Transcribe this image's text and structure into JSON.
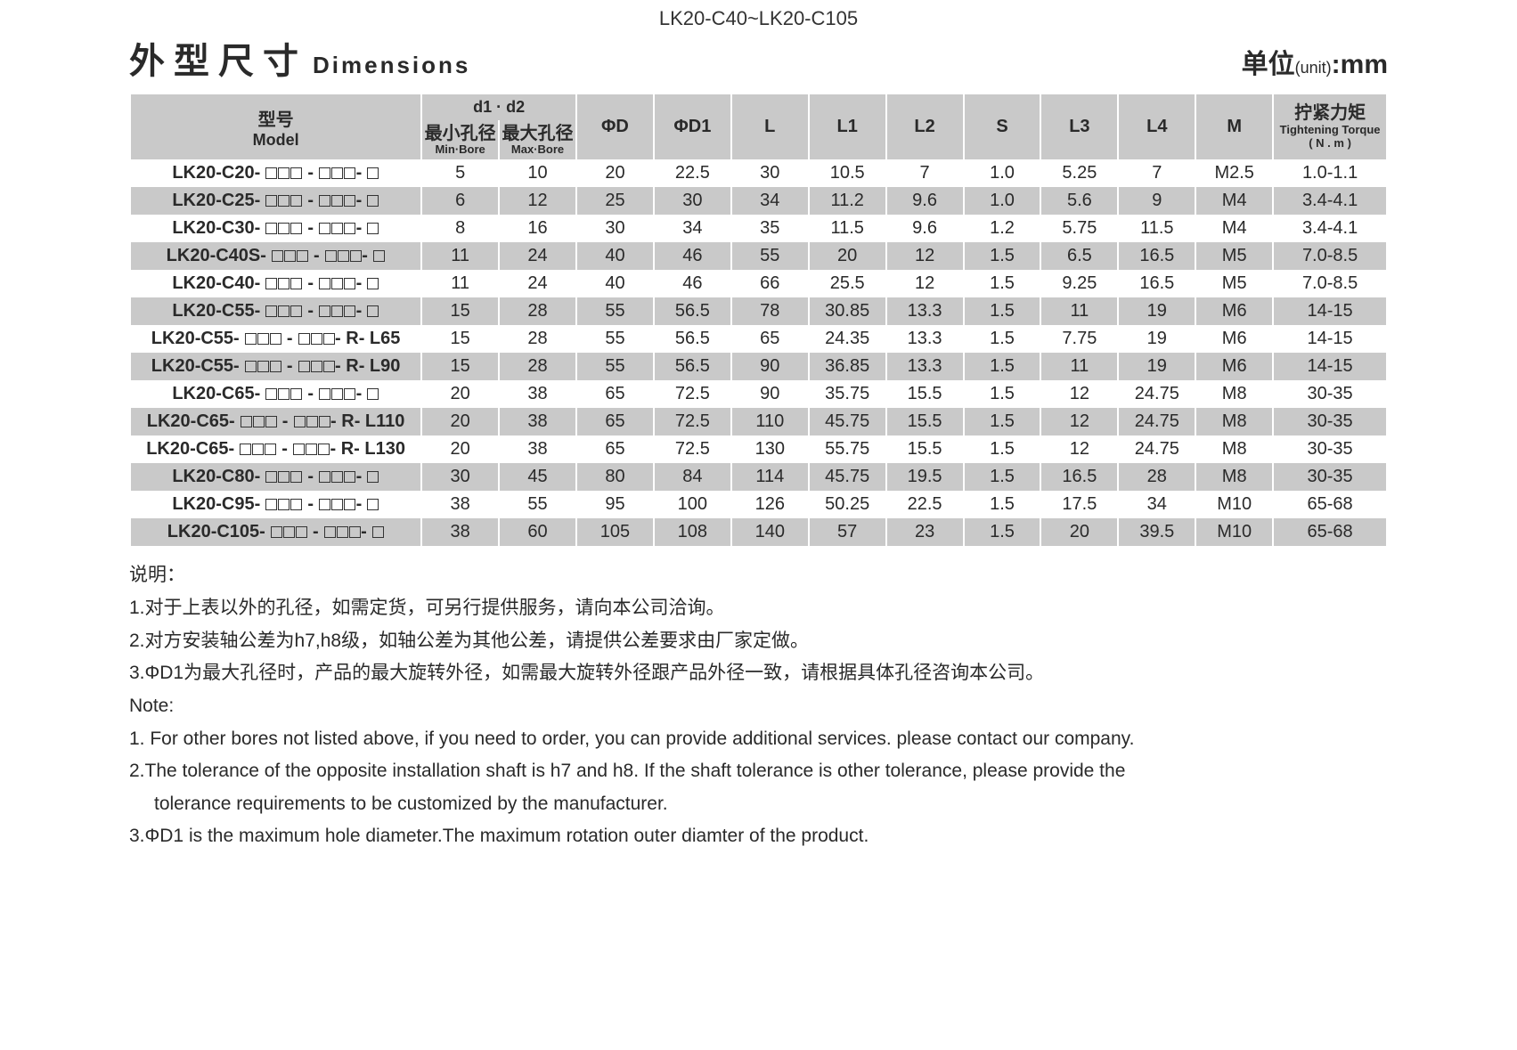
{
  "top_code": "LK20-C40~LK20-C105",
  "title": {
    "cn": "外型尺寸",
    "en": "Dimensions"
  },
  "unit": {
    "cn": "单位",
    "paren": "(unit)",
    "val": "mm"
  },
  "header": {
    "model_cn": "型号",
    "model_en": "Model",
    "d1d2": "d1 · d2",
    "min_bore_cn": "最小孔径",
    "min_bore_en": "Min·Bore",
    "max_bore_cn": "最大孔径",
    "max_bore_en": "Max·Bore",
    "phiD": "ΦD",
    "phiD1": "ΦD1",
    "L": "L",
    "L1": "L1",
    "L2": "L2",
    "S": "S",
    "L3": "L3",
    "L4": "L4",
    "M": "M",
    "torque_cn": "拧紧力矩",
    "torque_en": "Tightening Torque",
    "torque_unit": "( N . m )"
  },
  "rows": [
    {
      "model_prefix": "LK20-C20-",
      "model_suffix": "",
      "min": "5",
      "max": "10",
      "D": "20",
      "D1": "22.5",
      "L": "30",
      "L1": "10.5",
      "L2": "7",
      "S": "1.0",
      "L3": "5.25",
      "L4": "7",
      "M": "M2.5",
      "T": "1.0-1.1"
    },
    {
      "model_prefix": "LK20-C25-",
      "model_suffix": "",
      "min": "6",
      "max": "12",
      "D": "25",
      "D1": "30",
      "L": "34",
      "L1": "11.2",
      "L2": "9.6",
      "S": "1.0",
      "L3": "5.6",
      "L4": "9",
      "M": "M4",
      "T": "3.4-4.1"
    },
    {
      "model_prefix": "LK20-C30-",
      "model_suffix": "",
      "min": "8",
      "max": "16",
      "D": "30",
      "D1": "34",
      "L": "35",
      "L1": "11.5",
      "L2": "9.6",
      "S": "1.2",
      "L3": "5.75",
      "L4": "11.5",
      "M": "M4",
      "T": "3.4-4.1"
    },
    {
      "model_prefix": "LK20-C40S-",
      "model_suffix": "",
      "min": "11",
      "max": "24",
      "D": "40",
      "D1": "46",
      "L": "55",
      "L1": "20",
      "L2": "12",
      "S": "1.5",
      "L3": "6.5",
      "L4": "16.5",
      "M": "M5",
      "T": "7.0-8.5"
    },
    {
      "model_prefix": "LK20-C40-",
      "model_suffix": "",
      "min": "11",
      "max": "24",
      "D": "40",
      "D1": "46",
      "L": "66",
      "L1": "25.5",
      "L2": "12",
      "S": "1.5",
      "L3": "9.25",
      "L4": "16.5",
      "M": "M5",
      "T": "7.0-8.5"
    },
    {
      "model_prefix": "LK20-C55-",
      "model_suffix": "",
      "min": "15",
      "max": "28",
      "D": "55",
      "D1": "56.5",
      "L": "78",
      "L1": "30.85",
      "L2": "13.3",
      "S": "1.5",
      "L3": "11",
      "L4": "19",
      "M": "M6",
      "T": "14-15"
    },
    {
      "model_prefix": "LK20-C55-",
      "model_suffix": "- R- L65",
      "min": "15",
      "max": "28",
      "D": "55",
      "D1": "56.5",
      "L": "65",
      "L1": "24.35",
      "L2": "13.3",
      "S": "1.5",
      "L3": "7.75",
      "L4": "19",
      "M": "M6",
      "T": "14-15"
    },
    {
      "model_prefix": "LK20-C55-",
      "model_suffix": "- R- L90",
      "min": "15",
      "max": "28",
      "D": "55",
      "D1": "56.5",
      "L": "90",
      "L1": "36.85",
      "L2": "13.3",
      "S": "1.5",
      "L3": "11",
      "L4": "19",
      "M": "M6",
      "T": "14-15"
    },
    {
      "model_prefix": "LK20-C65-",
      "model_suffix": "",
      "min": "20",
      "max": "38",
      "D": "65",
      "D1": "72.5",
      "L": "90",
      "L1": "35.75",
      "L2": "15.5",
      "S": "1.5",
      "L3": "12",
      "L4": "24.75",
      "M": "M8",
      "T": "30-35"
    },
    {
      "model_prefix": "LK20-C65-",
      "model_suffix": "- R- L110",
      "min": "20",
      "max": "38",
      "D": "65",
      "D1": "72.5",
      "L": "110",
      "L1": "45.75",
      "L2": "15.5",
      "S": "1.5",
      "L3": "12",
      "L4": "24.75",
      "M": "M8",
      "T": "30-35"
    },
    {
      "model_prefix": "LK20-C65-",
      "model_suffix": "- R- L130",
      "min": "20",
      "max": "38",
      "D": "65",
      "D1": "72.5",
      "L": "130",
      "L1": "55.75",
      "L2": "15.5",
      "S": "1.5",
      "L3": "12",
      "L4": "24.75",
      "M": "M8",
      "T": "30-35"
    },
    {
      "model_prefix": "LK20-C80-",
      "model_suffix": "",
      "min": "30",
      "max": "45",
      "D": "80",
      "D1": "84",
      "L": "114",
      "L1": "45.75",
      "L2": "19.5",
      "S": "1.5",
      "L3": "16.5",
      "L4": "28",
      "M": "M8",
      "T": "30-35"
    },
    {
      "model_prefix": "LK20-C95-",
      "model_suffix": "",
      "min": "38",
      "max": "55",
      "D": "95",
      "D1": "100",
      "L": "126",
      "L1": "50.25",
      "L2": "22.5",
      "S": "1.5",
      "L3": "17.5",
      "L4": "34",
      "M": "M10",
      "T": "65-68"
    },
    {
      "model_prefix": "LK20-C105-",
      "model_suffix": "",
      "min": "38",
      "max": "60",
      "D": "105",
      "D1": "108",
      "L": "140",
      "L1": "57",
      "L2": "23",
      "S": "1.5",
      "L3": "20",
      "L4": "39.5",
      "M": "M10",
      "T": "65-68"
    }
  ],
  "notes": {
    "hdr_cn": "说明：",
    "cn1": "1.对于上表以外的孔径，如需定货，可另行提供服务，请向本公司洽询。",
    "cn2": "2.对方安装轴公差为h7,h8级，如轴公差为其他公差，请提供公差要求由厂家定做。",
    "cn3": "3.ΦD1为最大孔径时，产品的最大旋转外径，如需最大旋转外径跟产品外径一致，请根据具体孔径咨询本公司。",
    "hdr_en": "Note:",
    "en1": "1. For other bores not listed above, if you need to order, you can provide additional services. please contact our company.",
    "en2a": "2.The tolerance of the opposite installation shaft is h7 and h8. If the shaft tolerance is other tolerance, please provide the",
    "en2b": "tolerance requirements to be customized by the manufacturer.",
    "en3": "3.ΦD1 is the maximum hole diameter.The maximum rotation outer diamter of the product."
  },
  "colors": {
    "header_bg": "#c9c9c9",
    "row_even_bg": "#c9c9c9",
    "row_odd_bg": "#ffffff",
    "border": "#ffffff",
    "text": "#2a2a2a"
  }
}
